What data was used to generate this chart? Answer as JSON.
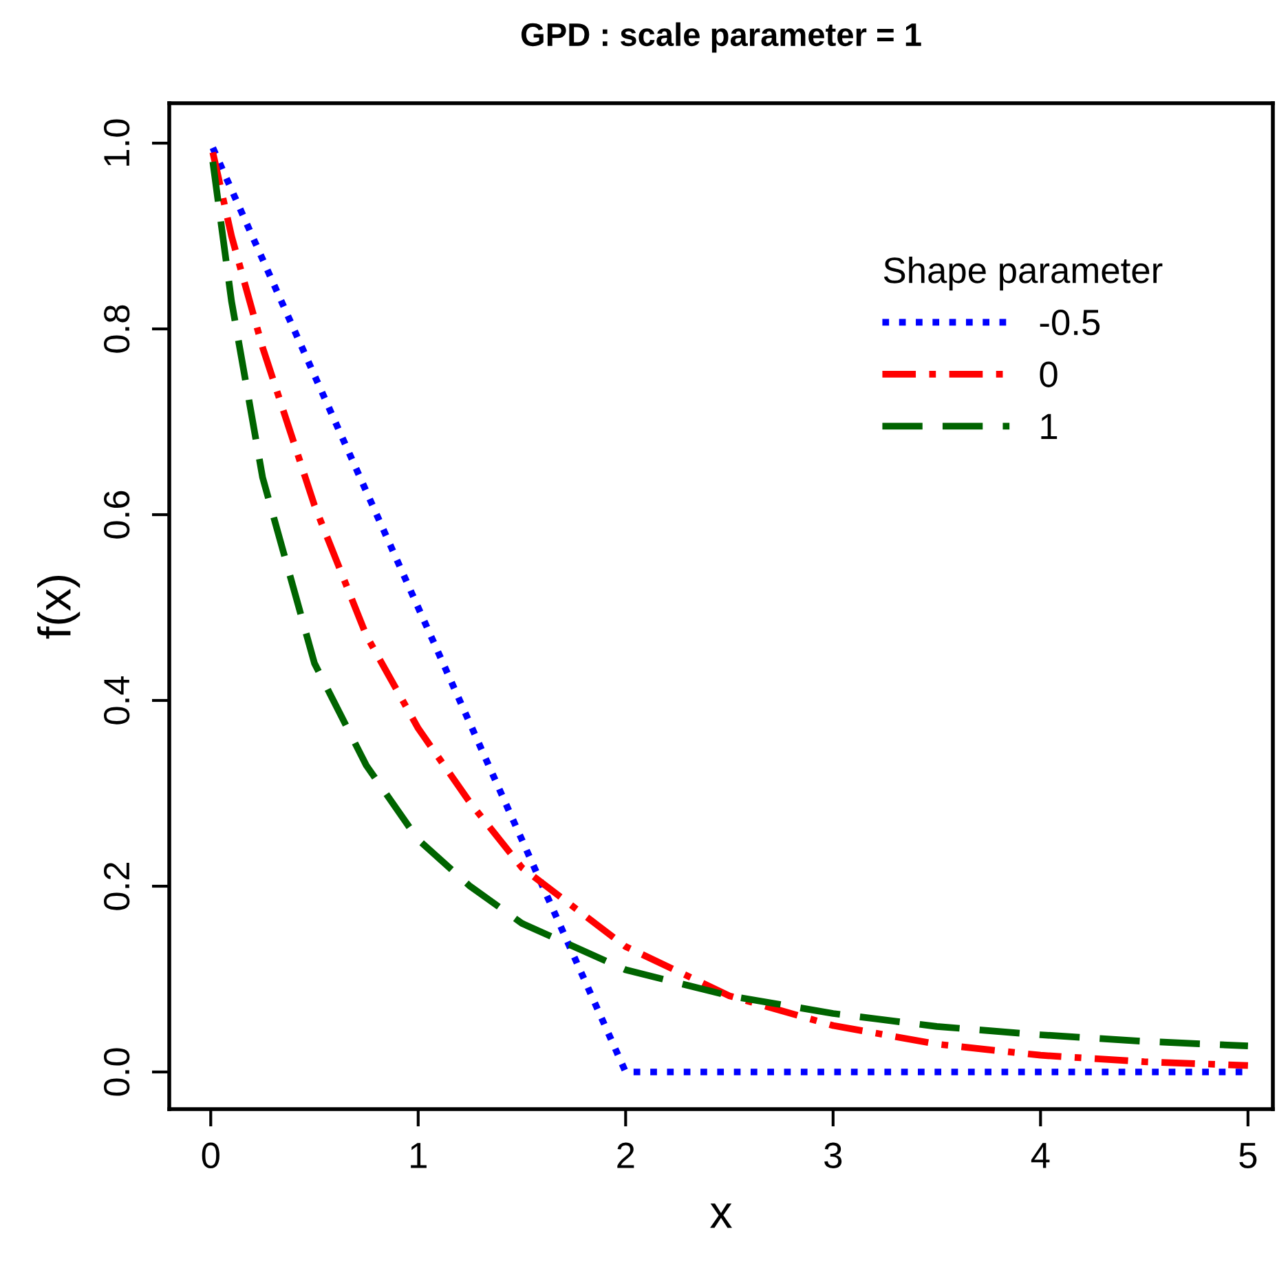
{
  "chart_data": {
    "type": "line",
    "title": "GPD : scale parameter = 1",
    "xlabel": "x",
    "ylabel": "f(x)",
    "legend_title": "Shape parameter",
    "xlim": [
      -0.2,
      5.12
    ],
    "ylim": [
      -0.04,
      1.043
    ],
    "xticks": [
      0,
      1,
      2,
      3,
      4,
      5
    ],
    "yticks": [
      {
        "value": 0,
        "label": "0.0"
      },
      {
        "value": 0.2,
        "label": "0.2"
      },
      {
        "value": 0.4,
        "label": "0.4"
      },
      {
        "value": 0.6,
        "label": "0.6"
      },
      {
        "value": 0.8,
        "label": "0.8"
      },
      {
        "value": 1,
        "label": "1.0"
      }
    ],
    "grid": false,
    "legend": "top right",
    "marker": "none",
    "series": [
      {
        "name": "-0.5",
        "color": "#0000ff",
        "line_style": "dotted",
        "x": [
          0.01,
          0.5,
          1,
          1.5,
          2,
          3,
          4,
          5
        ],
        "values": [
          0.995,
          0.75,
          0.5,
          0.25,
          0,
          0,
          0,
          0
        ]
      },
      {
        "name": "0",
        "color": "#ff0000",
        "line_style": "dashdot",
        "x": [
          0.01,
          0.1,
          0.25,
          0.5,
          0.75,
          1,
          1.25,
          1.5,
          2,
          2.5,
          3,
          3.5,
          4,
          4.5,
          5
        ],
        "values": [
          0.99,
          0.9,
          0.78,
          0.61,
          0.47,
          0.37,
          0.29,
          0.22,
          0.135,
          0.082,
          0.05,
          0.03,
          0.018,
          0.011,
          0.007
        ]
      },
      {
        "name": "1",
        "color": "#006400",
        "line_style": "dashed",
        "x": [
          0.01,
          0.1,
          0.25,
          0.5,
          0.75,
          1,
          1.25,
          1.5,
          2,
          2.5,
          3,
          3.5,
          4,
          4.5,
          5
        ],
        "values": [
          0.98,
          0.83,
          0.64,
          0.44,
          0.33,
          0.25,
          0.2,
          0.16,
          0.11,
          0.082,
          0.063,
          0.049,
          0.04,
          0.033,
          0.028
        ]
      }
    ]
  }
}
